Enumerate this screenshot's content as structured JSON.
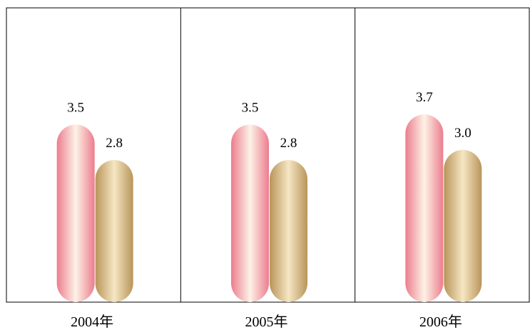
{
  "chart_data": {
    "type": "bar",
    "title": "",
    "xlabel": "",
    "ylabel": "",
    "categories": [
      "2004年",
      "2005年",
      "2006年"
    ],
    "series": [
      {
        "values": [
          3.5,
          3.5,
          3.7
        ]
      },
      {
        "values": [
          2.8,
          2.8,
          3.0
        ]
      }
    ],
    "value_labels": [
      [
        "3.5",
        "3.5",
        "3.7"
      ],
      [
        "2.8",
        "2.8",
        "3.0"
      ]
    ],
    "ylim": [
      0,
      5.8
    ],
    "grid": false,
    "colors": {
      "series_1_edge": "#ec7d8e",
      "series_1_center": "#fdf2e6",
      "series_2_edge": "#b8955a",
      "series_2_center": "#f6e6c3",
      "frame": "#000000"
    }
  }
}
